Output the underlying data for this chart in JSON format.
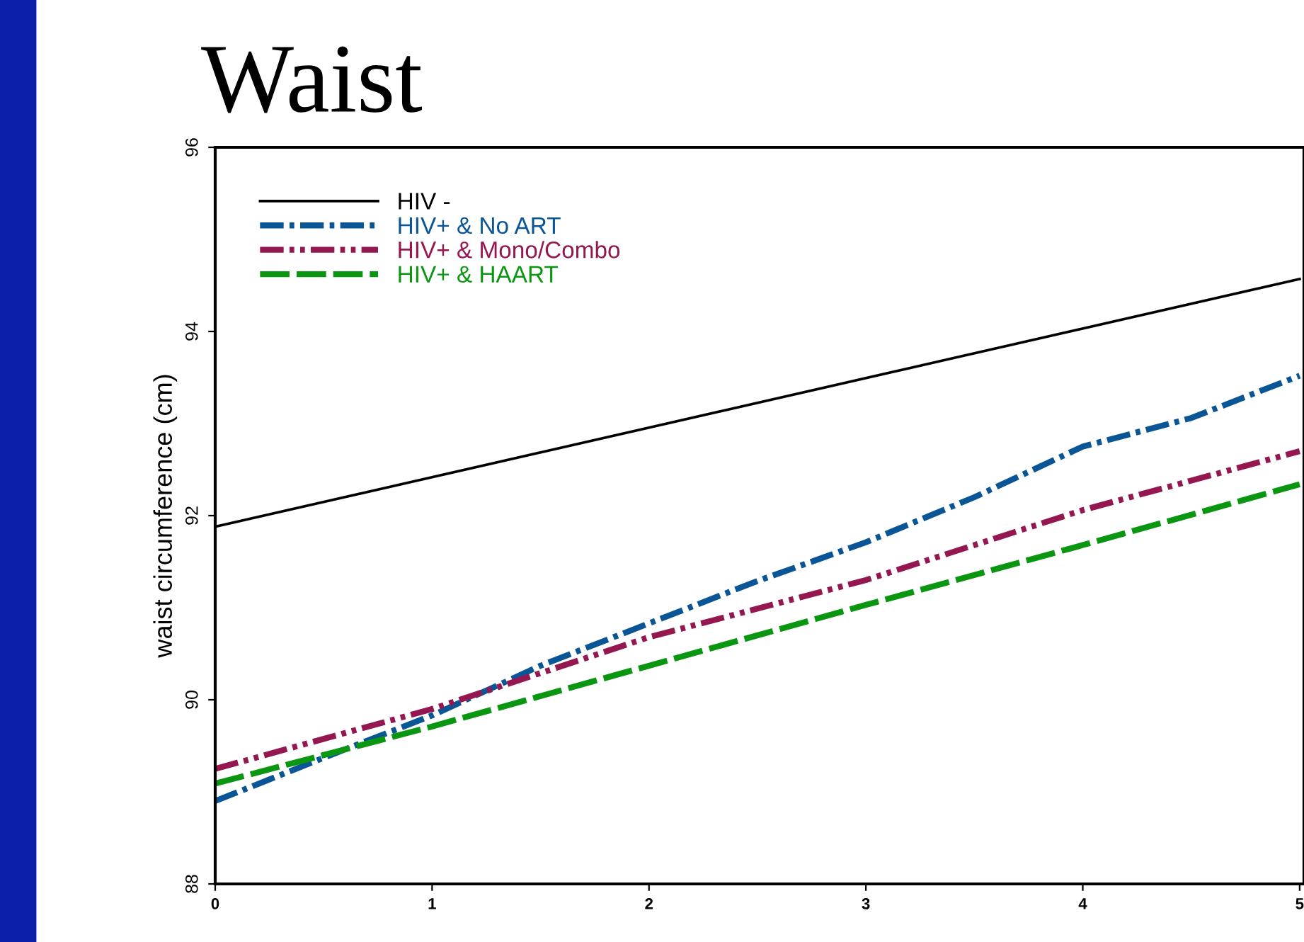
{
  "chart_data": {
    "type": "line",
    "title": "Waist",
    "ylabel": "waist circumference (cm)",
    "x": [
      0,
      0.5,
      1,
      1.5,
      2,
      2.5,
      3,
      3.5,
      4,
      4.5,
      5
    ],
    "xlim": [
      0,
      5.02
    ],
    "ylim": [
      88,
      96
    ],
    "xticks": [
      0,
      1,
      2,
      3,
      4,
      5
    ],
    "yticks": [
      88,
      90,
      92,
      94,
      96
    ],
    "grid": false,
    "legend": "top left",
    "marker": "none",
    "series": [
      {
        "name": "HIV -",
        "color": "#000000",
        "line_style": "solid",
        "x": [
          0,
          5
        ],
        "values": [
          91.88,
          94.57
        ]
      },
      {
        "name": "HIV+ & No ART",
        "color": "#0a5596",
        "line_style": "dashdot",
        "values": [
          88.9,
          89.37,
          89.83,
          90.37,
          90.83,
          91.29,
          91.71,
          92.2,
          92.75,
          93.06,
          93.52
        ]
      },
      {
        "name": "HIV+ & Mono/Combo",
        "color": "#94184f",
        "line_style": "dashdotdot",
        "x": [
          0,
          1,
          2,
          3,
          4,
          5
        ],
        "values": [
          89.25,
          89.9,
          90.68,
          91.3,
          92.06,
          92.7
        ]
      },
      {
        "name": "HIV+ & HAART",
        "color": "#0a9610",
        "line_style": "dashed",
        "x": [
          0,
          1,
          2,
          3,
          4,
          5
        ],
        "values": [
          89.09,
          89.71,
          90.37,
          91.03,
          91.68,
          92.34
        ]
      }
    ]
  }
}
